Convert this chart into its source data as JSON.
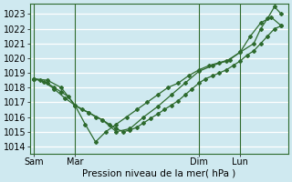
{
  "title": "",
  "xlabel": "Pression niveau de la mer( hPa )",
  "ylabel": "",
  "background_color": "#cfe9f0",
  "plot_background": "#cfe9f0",
  "grid_color": "#ffffff",
  "line_color": "#2d6a2d",
  "marker_color": "#2d6a2d",
  "ylim": [
    1013.5,
    1023.7
  ],
  "yticks": [
    1014,
    1015,
    1016,
    1017,
    1018,
    1019,
    1020,
    1021,
    1022,
    1023
  ],
  "xtick_labels": [
    "Sam",
    "Mar",
    "Dim",
    "Lun"
  ],
  "xtick_positions": [
    0,
    24,
    96,
    120
  ],
  "xlim": [
    -2,
    148
  ],
  "vline_positions": [
    0,
    24,
    96,
    120
  ],
  "series": [
    {
      "x": [
        0,
        4,
        8,
        12,
        16,
        20,
        24,
        28,
        32,
        36,
        40,
        44,
        48,
        52,
        56,
        60,
        64,
        68,
        72,
        76,
        80,
        84,
        88,
        92,
        96,
        100,
        104,
        108,
        112,
        116,
        120,
        124,
        128,
        132,
        136,
        140,
        144
      ],
      "y": [
        1018.6,
        1018.5,
        1018.3,
        1018.0,
        1017.7,
        1017.4,
        1016.8,
        1016.5,
        1016.3,
        1016.0,
        1015.8,
        1015.5,
        1015.2,
        1015.0,
        1015.1,
        1015.3,
        1015.6,
        1015.9,
        1016.2,
        1016.5,
        1016.8,
        1017.1,
        1017.5,
        1017.9,
        1018.3,
        1018.6,
        1018.8,
        1019.0,
        1019.2,
        1019.5,
        1019.8,
        1020.2,
        1020.5,
        1021.0,
        1021.5,
        1022.0,
        1022.2
      ]
    },
    {
      "x": [
        0,
        8,
        16,
        24,
        32,
        40,
        48,
        56,
        64,
        72,
        80,
        88,
        96,
        104,
        112,
        120,
        128,
        132,
        136,
        140,
        144
      ],
      "y": [
        1018.6,
        1018.5,
        1018.0,
        1016.8,
        1016.3,
        1015.8,
        1015.0,
        1015.2,
        1016.0,
        1016.7,
        1017.5,
        1018.3,
        1019.1,
        1019.5,
        1019.8,
        1020.4,
        1021.0,
        1022.0,
        1022.7,
        1023.5,
        1023.0
      ]
    },
    {
      "x": [
        0,
        6,
        12,
        18,
        24,
        30,
        36,
        42,
        48,
        54,
        60,
        66,
        72,
        78,
        84,
        90,
        96,
        102,
        108,
        114,
        120,
        126,
        132,
        138,
        144
      ],
      "y": [
        1018.6,
        1018.4,
        1017.9,
        1017.3,
        1016.8,
        1015.5,
        1014.3,
        1015.0,
        1015.5,
        1016.0,
        1016.5,
        1017.0,
        1017.5,
        1018.0,
        1018.3,
        1018.8,
        1019.2,
        1019.5,
        1019.7,
        1019.9,
        1020.4,
        1021.5,
        1022.4,
        1022.8,
        1022.2
      ]
    }
  ]
}
